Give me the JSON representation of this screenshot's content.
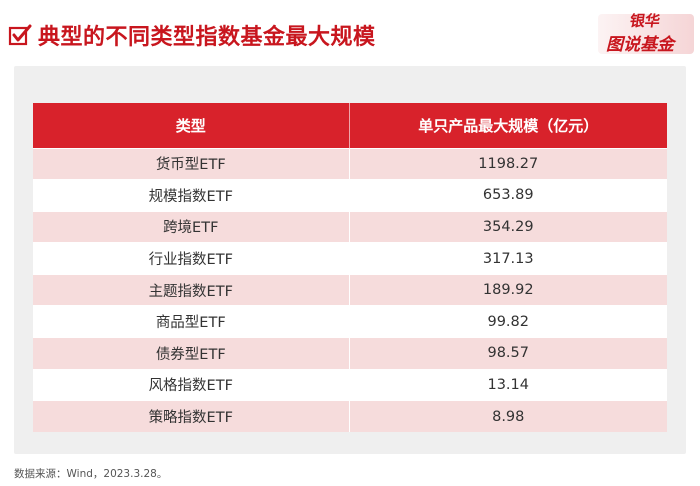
{
  "header": {
    "title": "典型的不同类型指数基金最大规模"
  },
  "logo": {
    "line1": "银华",
    "line2": "图说基金"
  },
  "table": {
    "columns": [
      "类型",
      "单只产品最大规模（亿元）"
    ],
    "rows": [
      {
        "type": "货币型ETF",
        "value": "1198.27"
      },
      {
        "type": "规模指数ETF",
        "value": "653.89"
      },
      {
        "type": "跨境ETF",
        "value": "354.29"
      },
      {
        "type": "行业指数ETF",
        "value": "317.13"
      },
      {
        "type": "主题指数ETF",
        "value": "189.92"
      },
      {
        "type": "商品型ETF",
        "value": "99.82"
      },
      {
        "type": "债券型ETF",
        "value": "98.57"
      },
      {
        "type": "风格指数ETF",
        "value": "13.14"
      },
      {
        "type": "策略指数ETF",
        "value": "8.98"
      }
    ]
  },
  "footer": {
    "source": "数据来源：Wind，2023.3.28。"
  },
  "colors": {
    "accent": "#c8161e",
    "header_bg": "#d8222b",
    "row_alt": "#f6dcdc",
    "panel_bg": "#efefef"
  }
}
